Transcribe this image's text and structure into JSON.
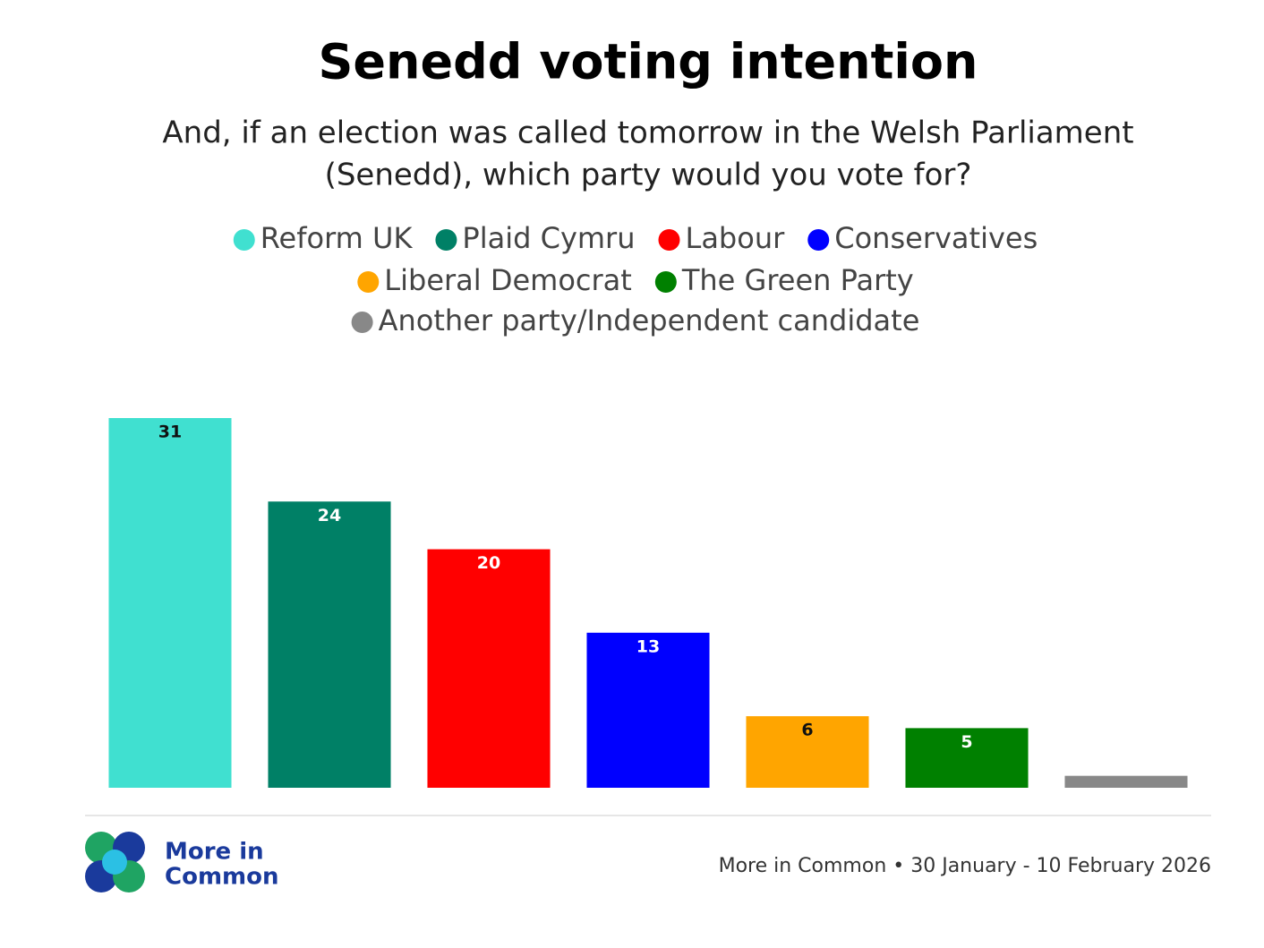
{
  "chart_data": {
    "type": "bar",
    "title": "Senedd voting intention",
    "subtitle": [
      "And, if an election was called tomorrow in the Welsh Parliament",
      "(Senedd), which party would you vote for?"
    ],
    "categories": [
      "Reform UK",
      "Plaid Cymru",
      "Labour",
      "Conservatives",
      "Liberal Democrat",
      "The Green Party",
      "Another party/Independent candidate"
    ],
    "values": [
      31,
      24,
      20,
      13,
      6,
      5,
      1
    ],
    "value_labels": [
      "31",
      "24",
      "20",
      "13",
      "6",
      "5",
      null
    ],
    "colors": [
      "#40e0d0",
      "#008066",
      "#ff0000",
      "#0000ff",
      "#ffa500",
      "#008000",
      "#888888"
    ],
    "label_colors": [
      "#111111",
      "#ffffff",
      "#ffffff",
      "#ffffff",
      "#111111",
      "#ffffff",
      "#ffffff"
    ],
    "ylim": [
      0,
      31
    ],
    "grid": false,
    "legend": "top",
    "logo": [
      "More in",
      "Common"
    ],
    "source": "More in Common • 30 January - 10 February 2026"
  }
}
